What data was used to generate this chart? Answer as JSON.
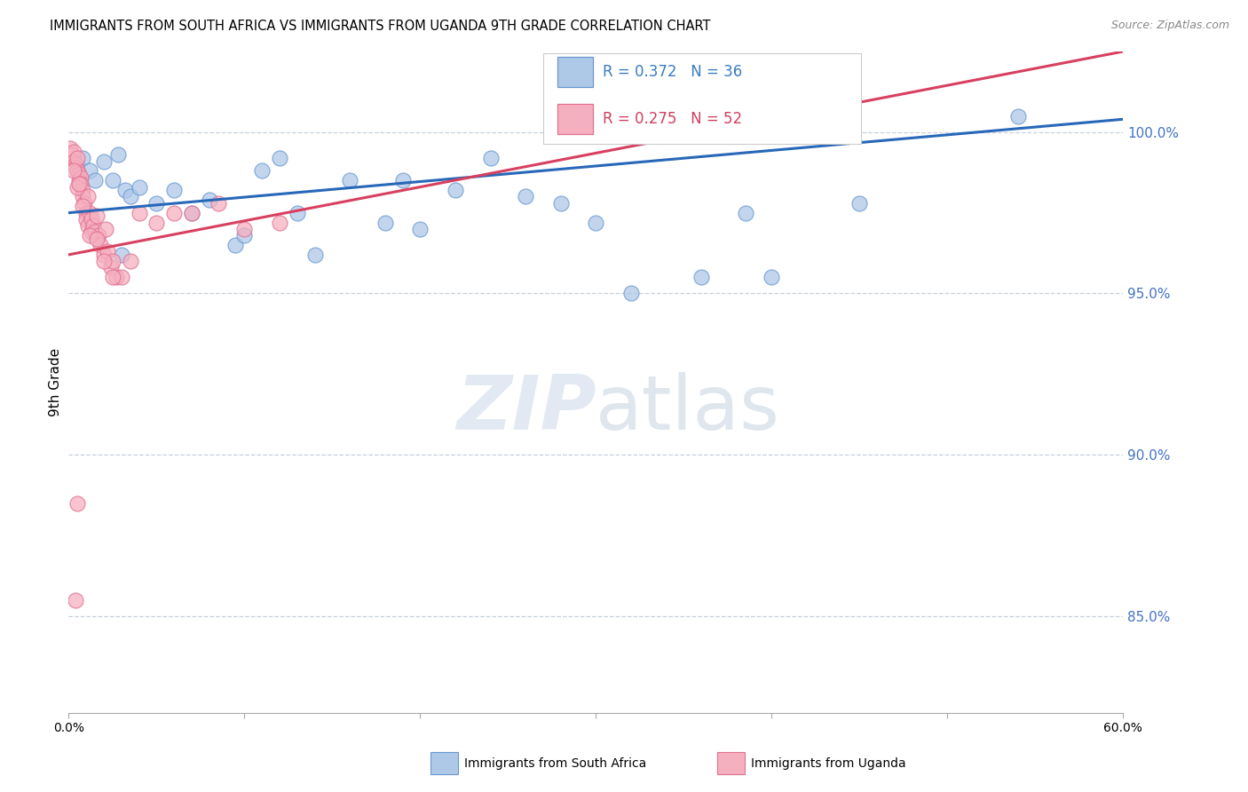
{
  "title": "IMMIGRANTS FROM SOUTH AFRICA VS IMMIGRANTS FROM UGANDA 9TH GRADE CORRELATION CHART",
  "source": "Source: ZipAtlas.com",
  "ylabel": "9th Grade",
  "xlim": [
    0.0,
    60.0
  ],
  "ylim": [
    82.0,
    102.5
  ],
  "yticks": [
    85.0,
    90.0,
    95.0,
    100.0
  ],
  "ytick_labels": [
    "85.0%",
    "90.0%",
    "95.0%",
    "100.0%"
  ],
  "r_blue": 0.372,
  "n_blue": 36,
  "r_pink": 0.275,
  "n_pink": 52,
  "legend_label_blue": "Immigrants from South Africa",
  "legend_label_pink": "Immigrants from Uganda",
  "blue_face_color": "#aec8e8",
  "pink_face_color": "#f5b0c0",
  "blue_edge_color": "#6898d0",
  "pink_edge_color": "#e07090",
  "blue_line_color": "#2868b8",
  "pink_line_color": "#d84060",
  "grid_color": "#c8d0dc",
  "blue_trend_y0": 97.5,
  "blue_trend_y1": 100.4,
  "pink_trend_y0": 96.2,
  "pink_trend_y1": 102.5,
  "blue_scatter_x": [
    0.5,
    0.8,
    1.2,
    1.5,
    2.0,
    2.5,
    2.8,
    3.2,
    3.5,
    4.0,
    5.0,
    6.0,
    7.0,
    8.0,
    9.5,
    10.0,
    11.0,
    12.0,
    13.0,
    14.0,
    16.0,
    18.0,
    19.0,
    20.0,
    22.0,
    24.0,
    26.0,
    28.0,
    30.0,
    32.0,
    36.0,
    38.5,
    40.0,
    45.0,
    54.0,
    3.0
  ],
  "blue_scatter_y": [
    99.0,
    99.2,
    98.8,
    98.5,
    99.1,
    98.5,
    99.3,
    98.2,
    98.0,
    98.3,
    97.8,
    98.2,
    97.5,
    97.9,
    96.5,
    96.8,
    98.8,
    99.2,
    97.5,
    96.2,
    98.5,
    97.2,
    98.5,
    97.0,
    98.2,
    99.2,
    98.0,
    97.8,
    97.2,
    95.0,
    95.5,
    97.5,
    95.5,
    97.8,
    100.5,
    96.2
  ],
  "pink_scatter_x": [
    0.1,
    0.2,
    0.3,
    0.3,
    0.4,
    0.4,
    0.5,
    0.5,
    0.6,
    0.6,
    0.7,
    0.7,
    0.8,
    0.8,
    0.9,
    1.0,
    1.0,
    1.1,
    1.1,
    1.2,
    1.3,
    1.3,
    1.4,
    1.5,
    1.6,
    1.7,
    1.8,
    2.0,
    2.1,
    2.2,
    2.4,
    2.5,
    2.7,
    3.0,
    3.5,
    4.0,
    5.0,
    6.0,
    7.0,
    8.5,
    10.0,
    12.0,
    0.5,
    0.8,
    1.2,
    1.6,
    2.0,
    2.5,
    0.3,
    0.6,
    0.5,
    0.4
  ],
  "pink_scatter_y": [
    99.5,
    99.3,
    99.4,
    99.1,
    99.0,
    98.9,
    98.8,
    99.2,
    98.7,
    98.5,
    98.6,
    98.4,
    98.2,
    98.0,
    97.8,
    97.5,
    97.3,
    97.1,
    98.0,
    97.5,
    97.3,
    96.9,
    97.1,
    96.9,
    97.4,
    96.8,
    96.5,
    96.2,
    97.0,
    96.3,
    95.8,
    96.0,
    95.5,
    95.5,
    96.0,
    97.5,
    97.2,
    97.5,
    97.5,
    97.8,
    97.0,
    97.2,
    98.3,
    97.7,
    96.8,
    96.7,
    96.0,
    95.5,
    98.8,
    98.4,
    88.5,
    85.5
  ]
}
